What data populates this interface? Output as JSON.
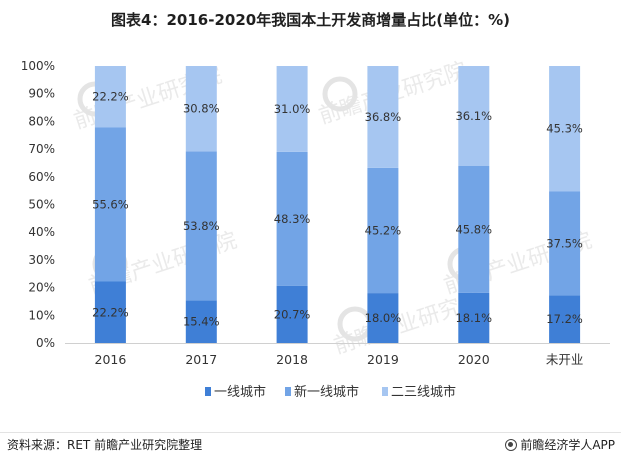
{
  "title": "图表4：2016-2020年我国本土开发商增量占比(单位：%)",
  "source": "资料来源：RET 前瞻产业研究院整理",
  "brand": "前瞻经济学人APP",
  "watermark": "前瞻产业研究院",
  "chart_data": {
    "type": "bar",
    "stacked": "percent",
    "categories": [
      "2016",
      "2017",
      "2018",
      "2019",
      "2020",
      "未开业"
    ],
    "series": [
      {
        "name": "一线城市",
        "color": "#3f7fd6",
        "values": [
          22.2,
          15.4,
          20.7,
          18.0,
          18.1,
          17.2
        ],
        "labels": [
          "22.2%",
          "15.4%",
          "20.7%",
          "18.0%",
          "18.1%",
          "17.2%"
        ]
      },
      {
        "name": "新一线城市",
        "color": "#72a4e6",
        "values": [
          55.6,
          53.8,
          48.3,
          45.2,
          45.8,
          37.5
        ],
        "labels": [
          "55.6%",
          "53.8%",
          "48.3%",
          "45.2%",
          "45.8%",
          "37.5%"
        ]
      },
      {
        "name": "二三线城市",
        "color": "#a6c6f1",
        "values": [
          22.2,
          30.8,
          31.0,
          36.8,
          36.1,
          45.3
        ],
        "labels": [
          "22.2%",
          "30.8%",
          "31.0%",
          "36.8%",
          "36.1%",
          "45.3%"
        ]
      }
    ],
    "yticks": [
      "0%",
      "10%",
      "20%",
      "30%",
      "40%",
      "50%",
      "60%",
      "70%",
      "80%",
      "90%",
      "100%"
    ],
    "ylim": [
      0,
      100
    ],
    "grid": false,
    "legend": "bottom"
  }
}
